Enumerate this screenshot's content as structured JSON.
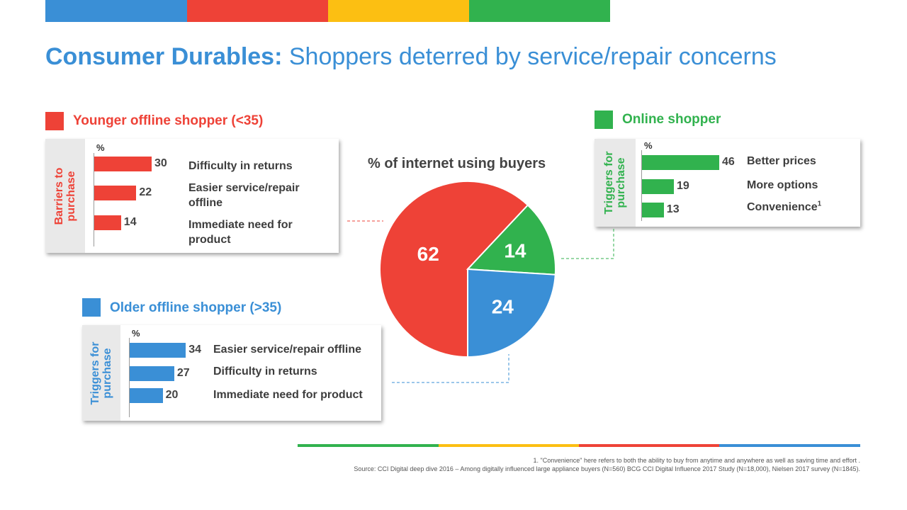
{
  "colors": {
    "red": "#ee4237",
    "green": "#31b24e",
    "blue": "#3a8fd6",
    "yellow": "#fcbf12"
  },
  "title": {
    "bold": "Consumer Durables:",
    "rest": "Shoppers deterred by service/repair concerns"
  },
  "pie_title": "% of internet using buyers",
  "groups": {
    "younger": {
      "label": "Younger offline shopper (<35)",
      "side_label_lines": [
        "Barriers to",
        "purchase"
      ]
    },
    "online": {
      "label": "Online shopper",
      "side_label_lines": [
        "Triggers for",
        "purchase"
      ]
    },
    "older": {
      "label": "Older offline shopper (>35)",
      "side_label_lines": [
        "Triggers for",
        "purchase"
      ]
    }
  },
  "chart_data": [
    {
      "type": "pie",
      "title": "% of internet using buyers",
      "categories": [
        "Younger offline shopper (<35)",
        "Online shopper",
        "Older offline shopper (>35)"
      ],
      "values": [
        62,
        14,
        24
      ],
      "value_labels": [
        "62",
        "14",
        "24"
      ]
    },
    {
      "type": "bar",
      "orientation": "horizontal",
      "title": "Younger offline shopper (<35)",
      "ylabel": "Barriers to purchase",
      "xlabel": "%",
      "categories": [
        "Difficulty in returns",
        "Easier service/repair offline",
        "Immediate need for product"
      ],
      "values": [
        30,
        22,
        14
      ],
      "value_labels": [
        "30",
        "22",
        "14"
      ]
    },
    {
      "type": "bar",
      "orientation": "horizontal",
      "title": "Online shopper",
      "ylabel": "Triggers for purchase",
      "xlabel": "%",
      "categories": [
        "Better prices",
        "More options",
        "Convenience"
      ],
      "category_superscripts": [
        "",
        "",
        "1"
      ],
      "values": [
        46,
        19,
        13
      ],
      "value_labels": [
        "46",
        "19",
        "13"
      ]
    },
    {
      "type": "bar",
      "orientation": "horizontal",
      "title": "Older offline shopper (>35)",
      "ylabel": "Triggers for purchase",
      "xlabel": "%",
      "categories": [
        "Easier service/repair offline",
        "Difficulty in returns",
        "Immediate need for product"
      ],
      "values": [
        34,
        27,
        20
      ],
      "value_labels": [
        "34",
        "27",
        "20"
      ]
    }
  ],
  "footnote_1": "1. \"Convenience\" here refers to both the ability to buy from anytime and anywhere as well as saving time and effort .",
  "footnote_source": "Source: CCI Digital deep dive 2016 – Among digitally influenced large appliance buyers (N=560) BCG CCI Digital Influence 2017 Study (N=18,000), Nielsen 2017 survey (N=1845)."
}
